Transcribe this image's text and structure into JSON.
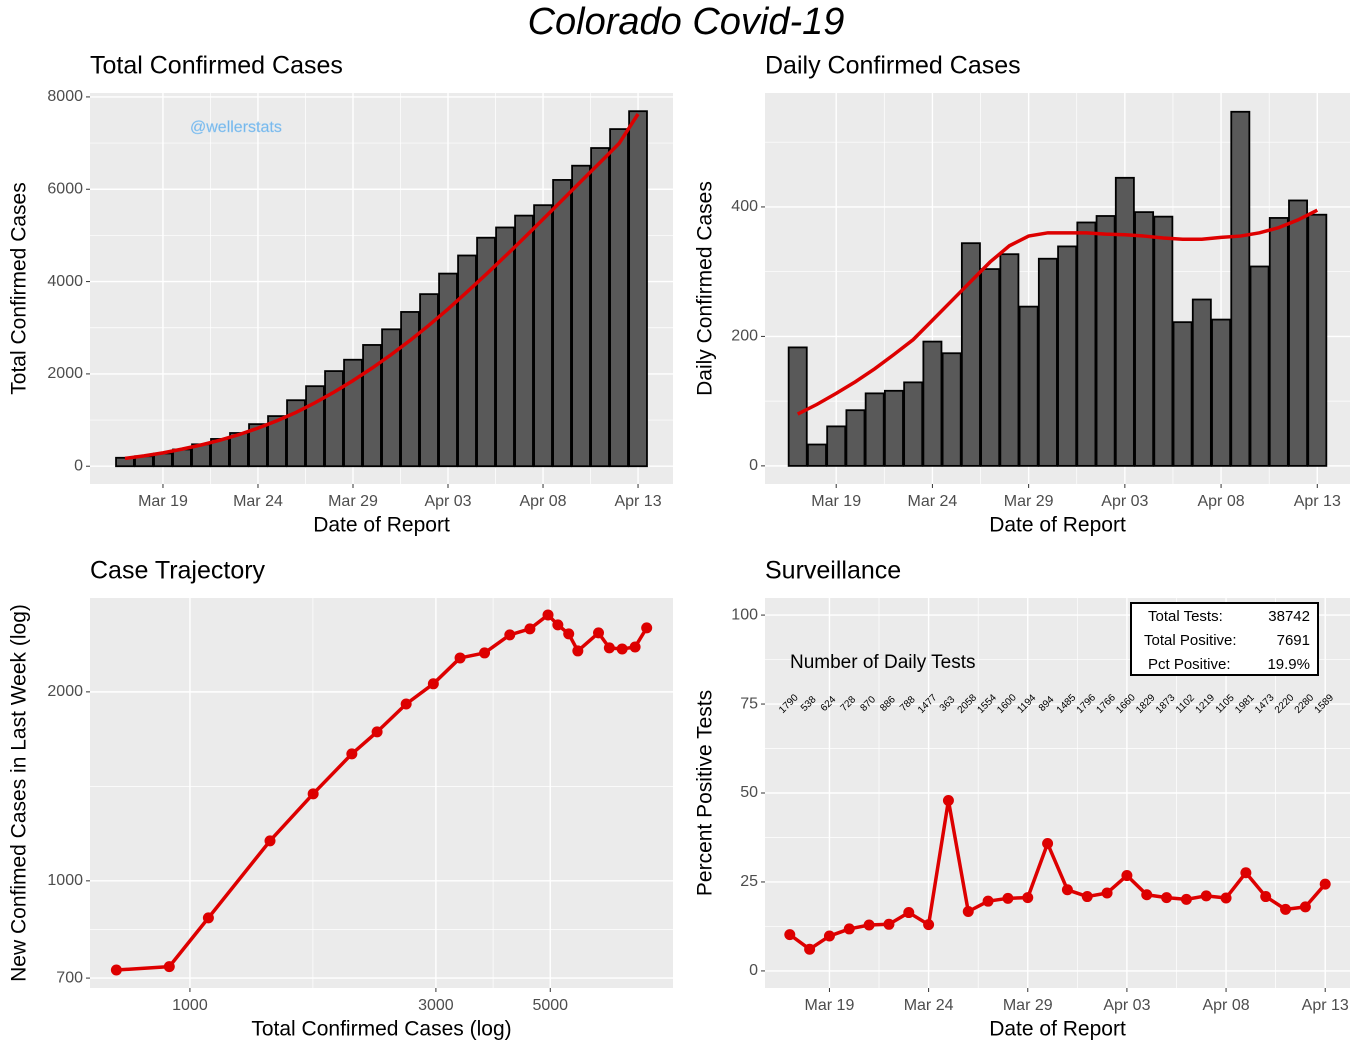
{
  "title": "Colorado Covid-19",
  "chart_data": [
    {
      "type": "bar",
      "title": "Total Confirmed Cases",
      "xlabel": "Date of Report",
      "ylabel": "Total Confirmed Cases",
      "categories": [
        null,
        null,
        "Mar 19",
        null,
        null,
        null,
        null,
        "Mar 24",
        null,
        null,
        null,
        null,
        "Mar 29",
        null,
        null,
        null,
        null,
        "Apr 03",
        null,
        null,
        null,
        null,
        "Apr 08",
        null,
        null,
        null,
        null,
        "Apr 13"
      ],
      "values": [
        183,
        216,
        277,
        363,
        475,
        591,
        720,
        912,
        1086,
        1430,
        1734,
        2061,
        2307,
        2627,
        2966,
        3342,
        3728,
        4173,
        4565,
        4950,
        5172,
        5429,
        5655,
        6202,
        6510,
        6893,
        7303,
        7691
      ],
      "color": "#595959",
      "edge_color": "#000000",
      "smooth": {
        "color": "#dd0000",
        "values": [
          170,
          225,
          290,
          370,
          460,
          565,
          685,
          825,
          985,
          1165,
          1375,
          1605,
          1855,
          2125,
          2415,
          2725,
          3055,
          3405,
          3775,
          4155,
          4545,
          4945,
          5350,
          5760,
          6170,
          6580,
          6990,
          7630
        ]
      },
      "ylim": [
        -385,
        8085
      ],
      "yticks": [
        0,
        2000,
        4000,
        6000,
        8000
      ],
      "grid": true,
      "annotation": "@wellerstats",
      "annotation_color": "#74b4e8"
    },
    {
      "type": "bar",
      "title": "Daily Confirmed Cases",
      "xlabel": "Date of Report",
      "ylabel": "Daily Confirmed Cases",
      "categories": [
        null,
        null,
        "Mar 19",
        null,
        null,
        null,
        null,
        "Mar 24",
        null,
        null,
        null,
        null,
        "Mar 29",
        null,
        null,
        null,
        null,
        "Apr 03",
        null,
        null,
        null,
        null,
        "Apr 08",
        null,
        null,
        null,
        null,
        "Apr 13"
      ],
      "values": [
        183,
        33,
        61,
        86,
        112,
        116,
        129,
        192,
        174,
        344,
        304,
        327,
        246,
        320,
        339,
        376,
        386,
        445,
        392,
        385,
        222,
        257,
        226,
        547,
        308,
        383,
        410,
        388
      ],
      "color": "#595959",
      "edge_color": "#000000",
      "smooth": {
        "color": "#dd0000",
        "values": [
          80,
          95,
          112,
          130,
          150,
          172,
          195,
          225,
          255,
          285,
          315,
          340,
          355,
          360,
          360,
          360,
          358,
          357,
          355,
          352,
          350,
          350,
          353,
          355,
          360,
          368,
          380,
          395
        ]
      },
      "ylim": [
        -28,
        576
      ],
      "yticks": [
        0,
        200,
        400
      ],
      "grid": true
    },
    {
      "type": "line",
      "title": "Case Trajectory",
      "xlabel": "Total Confirmed Cases (log)",
      "ylabel": "New Confimed Cases in Last Week (log)",
      "x": [
        720,
        912,
        1086,
        1430,
        1734,
        2061,
        2307,
        2627,
        2966,
        3342,
        3728,
        4173,
        4565,
        4950,
        5172,
        5429,
        5655,
        6202,
        6510,
        6893,
        7303,
        7691
      ],
      "values": [
        721,
        730,
        873,
        1158,
        1376,
        1593,
        1727,
        1913,
        2060,
        2265,
        2307,
        2465,
        2520,
        2652,
        2557,
        2474,
        2324,
        2483,
        2350,
        2341,
        2358,
        2529
      ],
      "color": "#dd0000",
      "xlog": true,
      "ylog": true,
      "xlim": [
        640,
        8650
      ],
      "ylim": [
        675,
        2822
      ],
      "xticks": [
        1000,
        3000,
        5000
      ],
      "yticks": [
        700,
        1000,
        2000
      ],
      "grid": true
    },
    {
      "type": "line",
      "title": "Surveillance",
      "xlabel": "Date of Report",
      "ylabel": "Percent Positive Tests",
      "categories": [
        null,
        null,
        "Mar 19",
        null,
        null,
        null,
        null,
        "Mar 24",
        null,
        null,
        null,
        null,
        "Mar 29",
        null,
        null,
        null,
        null,
        "Apr 03",
        null,
        null,
        null,
        null,
        "Apr 08",
        null,
        null,
        null,
        null,
        "Apr 13"
      ],
      "values": [
        10.2,
        6.1,
        9.8,
        11.8,
        12.9,
        13.1,
        16.4,
        13.0,
        47.9,
        16.7,
        19.6,
        20.4,
        20.6,
        35.8,
        22.8,
        20.9,
        21.9,
        26.8,
        21.4,
        20.6,
        20.1,
        21.1,
        20.5,
        27.6,
        20.9,
        17.3,
        18.0,
        24.4
      ],
      "tests": [
        1790,
        538,
        624,
        728,
        870,
        886,
        788,
        1477,
        363,
        2058,
        1554,
        1600,
        1194,
        894,
        1485,
        1796,
        1766,
        1660,
        1829,
        1873,
        1102,
        1219,
        1105,
        1981,
        1473,
        2220,
        2280,
        1589
      ],
      "tests_title": "Number of Daily Tests",
      "stats": [
        {
          "name": "Total Tests:",
          "text": "38742"
        },
        {
          "name": "Total Positive:",
          "text": "7691"
        },
        {
          "name": "Pct Positive:",
          "text": "19.9%"
        }
      ],
      "color": "#dd0000",
      "ylim": [
        -4.8,
        104.8
      ],
      "yticks": [
        0,
        25,
        50,
        75,
        100
      ],
      "grid": true
    }
  ]
}
